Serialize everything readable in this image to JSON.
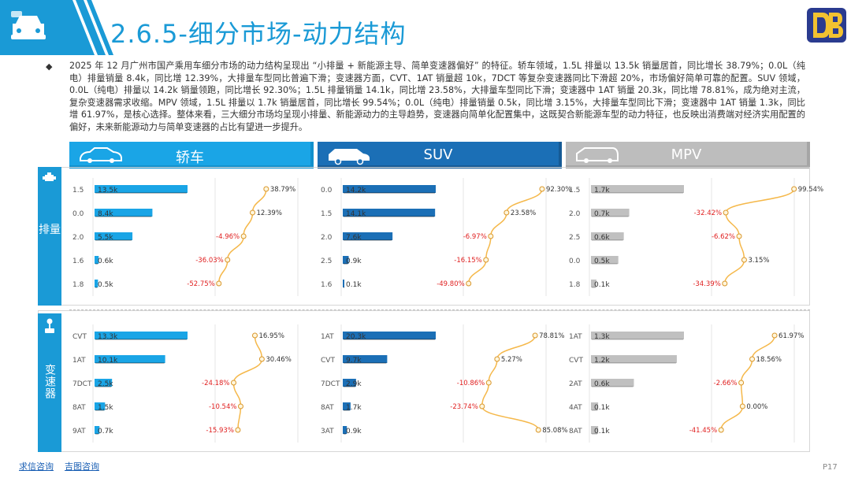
{
  "header": {
    "title": "2.6.5-细分市场-动力结构",
    "logo_text": "DB"
  },
  "summary": "2025 年 12 月广州市国产乘用车细分市场的动力结构呈现出 “小排量 + 新能源主导、简单变速器偏好” 的特征。轿车领域，1.5L 排量以 13.5k 销量居首，同比增长 38.79%；0.0L（纯电）排量销量 8.4k，同比增 12.39%，大排量车型同比普遍下滑；变速器方面，CVT、1AT 销量超 10k，7DCT 等复杂变速器同比下滑超 20%，市场偏好简单可靠的配置。SUV 领域，0.0L（纯电）排量以 14.2k 销量领跑，同比增长 92.30%；1.5L 排量销量 14.1k，同比增 23.58%，大排量车型同比下滑；变速器中 1AT 销量 20.3k，同比增 78.81%，成为绝对主流，复杂变速器需求收缩。MPV 领域，1.5L 排量以 1.7k 销量居首，同比增长 99.54%；0.0L（纯电）排量销量 0.5k，同比增 3.15%，大排量车型同比下滑；变速器中 1AT 销量 1.3k，同比增 61.97%，是核心选择。整体来看，三大细分市场均呈现小排量、新能源动力的主导趋势，变速器向简单化配置集中，这既契合新能源车型的动力特征，也反映出消费端对经济实用配置的偏好，未来新能源动力与简单变速器的占比有望进一步提升。",
  "side_labels": {
    "displacement": "排量",
    "transmission": "变速器"
  },
  "categories": [
    {
      "label": "轿车",
      "color": "#1aa5e6"
    },
    {
      "label": "SUV",
      "color": "#1b6fb6"
    },
    {
      "label": "MPV",
      "color": "#bdbdbd"
    }
  ],
  "chart_data": [
    {
      "type": "bar",
      "segment": "轿车",
      "group": "排量",
      "categories": [
        "1.5",
        "0.0",
        "2.0",
        "1.6",
        "1.8"
      ],
      "values": [
        13.5,
        8.4,
        5.5,
        0.6,
        0.5
      ],
      "labels": [
        "13.5k",
        "8.4k",
        "5.5k",
        "0.6k",
        "0.5k"
      ],
      "growth": [
        38.79,
        12.39,
        -4.96,
        -36.03,
        -52.75
      ],
      "growth_labels": [
        "38.79%",
        "12.39%",
        "-4.96%",
        "-36.03%",
        "-52.75%"
      ]
    },
    {
      "type": "bar",
      "segment": "SUV",
      "group": "排量",
      "categories": [
        "0.0",
        "1.5",
        "2.0",
        "2.5",
        "1.6"
      ],
      "values": [
        14.2,
        14.1,
        7.6,
        0.9,
        0.1
      ],
      "labels": [
        "14.2k",
        "14.1k",
        "7.6k",
        "0.9k",
        "0.1k"
      ],
      "growth": [
        92.3,
        23.58,
        -6.97,
        -16.15,
        -49.8
      ],
      "growth_labels": [
        "92.30%",
        "23.58%",
        "-6.97%",
        "-16.15%",
        "-49.80%"
      ]
    },
    {
      "type": "bar",
      "segment": "MPV",
      "group": "排量",
      "categories": [
        "1.5",
        "2.0",
        "2.5",
        "0.0",
        "1.8"
      ],
      "values": [
        1.7,
        0.7,
        0.6,
        0.5,
        0.1
      ],
      "labels": [
        "1.7k",
        "0.7k",
        "0.6k",
        "0.5k",
        "0.1k"
      ],
      "growth": [
        99.54,
        -32.42,
        -6.62,
        3.15,
        -34.39
      ],
      "growth_labels": [
        "99.54%",
        "-32.42%",
        "-6.62%",
        "3.15%",
        "-34.39%"
      ]
    },
    {
      "type": "bar",
      "segment": "轿车",
      "group": "变速器",
      "categories": [
        "CVT",
        "1AT",
        "7DCT",
        "8AT",
        "9AT"
      ],
      "values": [
        13.3,
        10.1,
        2.5,
        1.5,
        0.7
      ],
      "labels": [
        "13.3k",
        "10.1k",
        "2.5k",
        "1.5k",
        "0.7k"
      ],
      "growth": [
        16.95,
        30.46,
        -24.18,
        -10.54,
        -15.93
      ],
      "growth_labels": [
        "16.95%",
        "30.46%",
        "-24.18%",
        "-10.54%",
        "-15.93%"
      ]
    },
    {
      "type": "bar",
      "segment": "SUV",
      "group": "变速器",
      "categories": [
        "1AT",
        "CVT",
        "7DCT",
        "8AT",
        "3AT"
      ],
      "values": [
        20.3,
        9.7,
        2.9,
        1.7,
        0.9
      ],
      "labels": [
        "20.3k",
        "9.7k",
        "2.9k",
        "1.7k",
        "0.9k"
      ],
      "growth": [
        78.81,
        5.27,
        -10.86,
        -23.74,
        85.08
      ],
      "growth_labels": [
        "78.81%",
        "5.27%",
        "-10.86%",
        "-23.74%",
        "85.08%"
      ]
    },
    {
      "type": "bar",
      "segment": "MPV",
      "group": "变速器",
      "categories": [
        "1AT",
        "CVT",
        "2AT",
        "4AT",
        "8AT"
      ],
      "values": [
        1.3,
        1.2,
        0.6,
        0.1,
        0.1
      ],
      "labels": [
        "1.3k",
        "1.2k",
        "0.6k",
        "0.1k",
        "0.1k"
      ],
      "growth": [
        61.97,
        18.56,
        -2.66,
        0.0,
        -41.45
      ],
      "growth_labels": [
        "61.97%",
        "18.56%",
        "-2.66%",
        "0.00%",
        "-41.45%"
      ]
    }
  ],
  "colors": {
    "title_blue": "#1a9ad6",
    "sedan_bar": "#1aa5e6",
    "suv_bar": "#1b6fb6",
    "mpv_bar": "#c0c0c0",
    "line": "#f5b84a",
    "negative": "#e02020",
    "positive": "#333333"
  },
  "footer": {
    "link1": "求信咨询",
    "link2": "吉图咨询",
    "page": "P17"
  }
}
